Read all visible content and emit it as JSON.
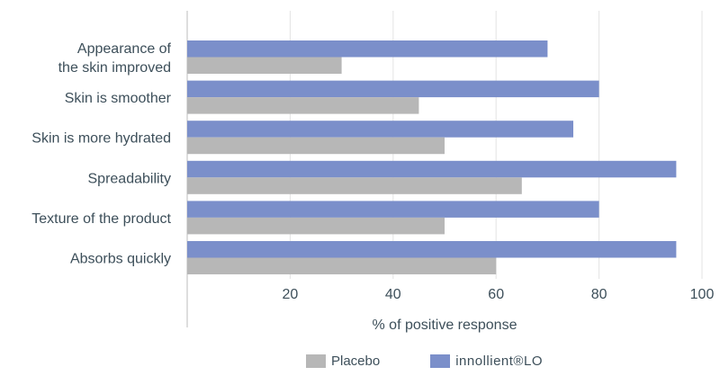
{
  "chart_data": {
    "type": "bar",
    "orientation": "horizontal",
    "categories": [
      "Appearance of\nthe skin improved",
      "Skin is smoother",
      "Skin is more hydrated",
      "Spreadability",
      "Texture of the product",
      "Absorbs quickly"
    ],
    "series": [
      {
        "name": "innollient®LO",
        "color": "#7b8fca",
        "values": [
          70,
          80,
          75,
          95,
          80,
          95
        ]
      },
      {
        "name": "Placebo",
        "color": "#b7b7b7",
        "values": [
          30,
          45,
          50,
          65,
          50,
          60
        ]
      }
    ],
    "xlabel": "% of positive response",
    "xlim": [
      0,
      100
    ],
    "xticks": [
      20,
      40,
      60,
      80,
      100
    ],
    "grid": "vertical",
    "legend_position": "bottom-center"
  },
  "legend": {
    "placebo_label": "Placebo",
    "brand_label": "innollient®LO"
  }
}
